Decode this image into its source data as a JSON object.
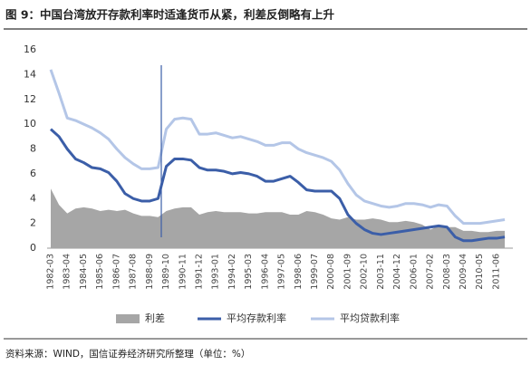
{
  "chart_data": {
    "type": "line",
    "title": "图 9：中国台湾放开存款利率时适逢货币从紧，利差反倒略有上升",
    "source": "资料来源：WIND，国信证券经济研究所整理（单位：%）",
    "categories": [
      "1982-03",
      null,
      "1983-04",
      null,
      "1984-05",
      null,
      "1985-06",
      null,
      "1986-07",
      null,
      "1987-08",
      null,
      "1988-09",
      null,
      "1989-10",
      null,
      "1990-11",
      null,
      "1991-12",
      null,
      "1993-01",
      null,
      "1994-02",
      null,
      "1995-03",
      null,
      "1996-04",
      null,
      "1997-05",
      null,
      "1998-06",
      null,
      "1999-07",
      null,
      "2000-08",
      null,
      "2001-09",
      null,
      "2002-10",
      null,
      "2003-11",
      null,
      "2004-12",
      null,
      "2006-01",
      null,
      "2007-02",
      null,
      "2008-03",
      null,
      "2009-04",
      null,
      "2010-05",
      null,
      "2011-06",
      null
    ],
    "series": [
      {
        "name": "利差",
        "color": "#a6a6a6",
        "style": "area",
        "values": [
          4.8,
          3.5,
          2.8,
          3.2,
          3.3,
          3.2,
          3.0,
          3.1,
          3.0,
          3.1,
          2.8,
          2.6,
          2.6,
          2.5,
          3.0,
          3.2,
          3.3,
          3.3,
          2.7,
          2.9,
          3.0,
          2.9,
          2.9,
          2.9,
          2.8,
          2.8,
          2.9,
          2.9,
          2.9,
          2.7,
          2.7,
          3.0,
          2.9,
          2.7,
          2.4,
          2.3,
          2.5,
          2.3,
          2.3,
          2.4,
          2.3,
          2.1,
          2.1,
          2.2,
          2.1,
          1.9,
          1.5,
          1.8,
          1.7,
          1.7,
          1.4,
          1.4,
          1.3,
          1.3,
          1.4,
          1.4
        ]
      },
      {
        "name": "平均存款利率",
        "color": "#3b5ea8",
        "style": "line",
        "values": [
          9.6,
          9.0,
          8.0,
          7.2,
          6.9,
          6.5,
          6.4,
          6.1,
          5.4,
          4.4,
          4.0,
          3.8,
          3.8,
          4.0,
          6.6,
          7.2,
          7.2,
          7.1,
          6.5,
          6.3,
          6.3,
          6.2,
          6.0,
          6.1,
          6.0,
          5.8,
          5.4,
          5.4,
          5.6,
          5.8,
          5.3,
          4.7,
          4.6,
          4.6,
          4.6,
          4.0,
          2.7,
          2.0,
          1.5,
          1.2,
          1.1,
          1.2,
          1.3,
          1.4,
          1.5,
          1.6,
          1.7,
          1.8,
          1.7,
          0.9,
          0.6,
          0.6,
          0.7,
          0.8,
          0.8,
          0.9
        ]
      },
      {
        "name": "平均贷款利率",
        "color": "#b4c6e7",
        "style": "line",
        "values": [
          14.4,
          12.5,
          10.5,
          10.3,
          10.0,
          9.7,
          9.3,
          8.8,
          8.0,
          7.3,
          6.8,
          6.4,
          6.4,
          6.5,
          9.6,
          10.4,
          10.5,
          10.4,
          9.2,
          9.2,
          9.3,
          9.1,
          8.9,
          9.0,
          8.8,
          8.6,
          8.3,
          8.3,
          8.5,
          8.5,
          8.0,
          7.7,
          7.5,
          7.3,
          7.0,
          6.3,
          5.2,
          4.3,
          3.8,
          3.6,
          3.4,
          3.3,
          3.4,
          3.6,
          3.6,
          3.5,
          3.3,
          3.5,
          3.4,
          2.6,
          2.0,
          2.0,
          2.0,
          2.1,
          2.2,
          2.3
        ]
      }
    ],
    "ylim": [
      0,
      16
    ],
    "yticks": [
      0,
      2,
      4,
      6,
      8,
      10,
      12,
      14,
      16
    ],
    "grid": false,
    "legend": "bottom"
  }
}
